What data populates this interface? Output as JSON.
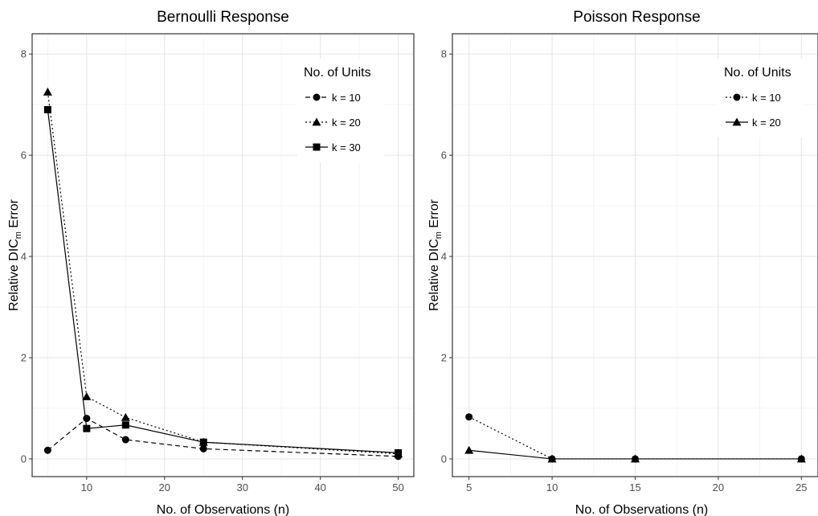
{
  "chart_data": [
    {
      "type": "line",
      "title": "Bernoulli Response",
      "xlabel": "No. of Observations (n)",
      "ylabel": {
        "main": "Relative DIC",
        "sub": "m",
        "suffix": " Error"
      },
      "xlim": [
        3,
        52
      ],
      "ylim": [
        -0.35,
        8.4
      ],
      "xticks": [
        10,
        20,
        30,
        40,
        50
      ],
      "yticks": [
        0,
        2,
        4,
        6,
        8
      ],
      "grid": true,
      "legend": {
        "title": "No. of Units",
        "position": "top-right"
      },
      "series": [
        {
          "name": "k = 10",
          "marker": "circle",
          "line": "dashed",
          "x": [
            5,
            10,
            15,
            25,
            50
          ],
          "y": [
            0.17,
            0.8,
            0.38,
            0.2,
            0.05
          ]
        },
        {
          "name": "k = 20",
          "marker": "triangle",
          "line": "dotted",
          "x": [
            5,
            10,
            15,
            25,
            50
          ],
          "y": [
            7.25,
            1.23,
            0.82,
            0.33,
            0.1
          ]
        },
        {
          "name": "k = 30",
          "marker": "square",
          "line": "solid",
          "x": [
            5,
            10,
            15,
            25,
            50
          ],
          "y": [
            6.9,
            0.6,
            0.67,
            0.33,
            0.12
          ]
        }
      ]
    },
    {
      "type": "line",
      "title": "Poisson Response",
      "xlabel": "No. of Observations (n)",
      "ylabel": {
        "main": "Relative DIC",
        "sub": "m",
        "suffix": " Error"
      },
      "xlim": [
        4,
        26
      ],
      "ylim": [
        -0.35,
        8.4
      ],
      "xticks": [
        5,
        10,
        15,
        20,
        25
      ],
      "yticks": [
        0,
        2,
        4,
        6,
        8
      ],
      "grid": true,
      "legend": {
        "title": "No. of Units",
        "position": "top-right"
      },
      "series": [
        {
          "name": "k = 10",
          "marker": "circle",
          "line": "dotted",
          "x": [
            5,
            10,
            15,
            25
          ],
          "y": [
            0.83,
            0.0,
            0.0,
            0.0
          ]
        },
        {
          "name": "k = 20",
          "marker": "triangle",
          "line": "solid",
          "x": [
            5,
            10,
            15,
            25
          ],
          "y": [
            0.17,
            0.0,
            0.0,
            0.0
          ]
        }
      ]
    }
  ]
}
